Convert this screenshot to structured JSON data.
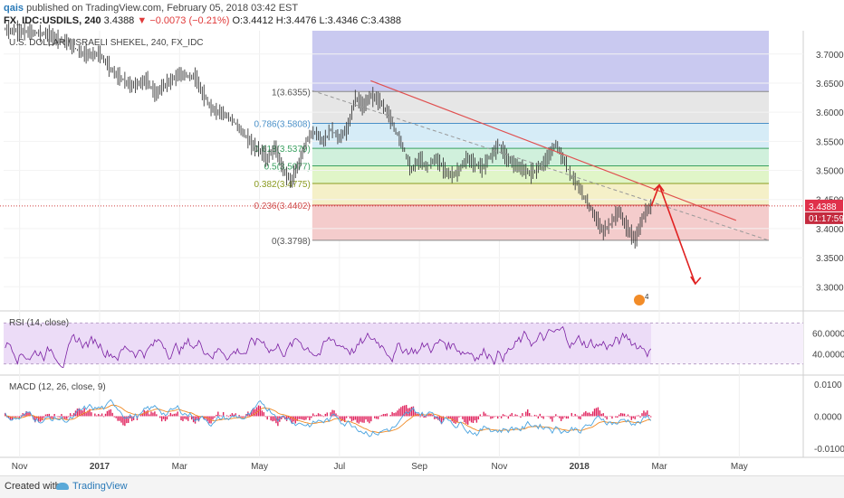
{
  "header": {
    "user": "qais",
    "published": "published on TradingView.com, February 05, 2018 03:42 EST",
    "symbol": "FX_IDC:USDILS, 240",
    "last": "3.4388",
    "change": "▼ −0.0073 (−0.21%)",
    "ohlc": "O:3.4412 H:3.4476 L:3.4346 C:3.4388"
  },
  "footer": {
    "created": "Created with",
    "brand": "TradingView"
  },
  "colors": {
    "up": "#3a3a3a",
    "fib_top": "#c9c9f0",
    "fib_1": "#e6e6e6",
    "fib_0786": "#d6ecf7",
    "fib_0618": "#d0f0dc",
    "fib_05": "#e0f5c8",
    "fib_0382": "#f5f0c8",
    "fib_0236": "#f4cccc",
    "trend": "#e05050",
    "rsi": "#7a1fa2",
    "macd": "#4aa3df",
    "signal": "#f08a24",
    "hist": "#e0245e"
  },
  "chart_data": [
    {
      "type": "line",
      "title": "U.S. DOLLAR / ISRAELI SHEKEL, 240, FX_IDC",
      "x_tick_labels": [
        "Nov",
        "2017",
        "Mar",
        "May",
        "Jul",
        "Sep",
        "Nov",
        "2018",
        "Mar",
        "May"
      ],
      "y_ticks": [
        "3.7000",
        "3.6500",
        "3.6000",
        "3.5500",
        "3.5000",
        "3.4500",
        "3.4000",
        "3.3500",
        "3.3000"
      ],
      "ylim": [
        3.26,
        3.74
      ],
      "last_price_label": "3.4388",
      "countdown_label": "01:17:59",
      "fib_levels": [
        {
          "label": "1(3.6355)",
          "value": 3.6355
        },
        {
          "label": "0.786(3.5808)",
          "value": 3.5808
        },
        {
          "label": "0.618(3.5379)",
          "value": 3.5379
        },
        {
          "label": "0.5(3.5077)",
          "value": 3.5077
        },
        {
          "label": "0.382(3.4775)",
          "value": 3.4775
        },
        {
          "label": "0.236(3.4402)",
          "value": 3.4402
        },
        {
          "label": "0(3.3798)",
          "value": 3.3798
        }
      ],
      "series": [
        {
          "values": [
            [
              0,
              3.742
            ],
            [
              5,
              3.735
            ],
            [
              8,
              3.72
            ],
            [
              10,
              3.7
            ],
            [
              12,
              3.7
            ],
            [
              14,
              3.665
            ],
            [
              16,
              3.645
            ],
            [
              18,
              3.655
            ],
            [
              19,
              3.63
            ],
            [
              20,
              3.645
            ],
            [
              22,
              3.665
            ],
            [
              24,
              3.66
            ],
            [
              25,
              3.63
            ],
            [
              26,
              3.605
            ],
            [
              28,
              3.595
            ],
            [
              30,
              3.565
            ],
            [
              31,
              3.545
            ],
            [
              32,
              3.535
            ],
            [
              33,
              3.52
            ],
            [
              34,
              3.54
            ],
            [
              35,
              3.5
            ],
            [
              36,
              3.48
            ],
            [
              37,
              3.515
            ],
            [
              38,
              3.555
            ],
            [
              39,
              3.565
            ],
            [
              40,
              3.55
            ],
            [
              41,
              3.57
            ],
            [
              42,
              3.555
            ],
            [
              43,
              3.57
            ],
            [
              44,
              3.625
            ],
            [
              45,
              3.61
            ],
            [
              46,
              3.63
            ],
            [
              47,
              3.62
            ],
            [
              48,
              3.6
            ],
            [
              49,
              3.57
            ],
            [
              50,
              3.54
            ],
            [
              51,
              3.5
            ],
            [
              52,
              3.52
            ],
            [
              53,
              3.505
            ],
            [
              54,
              3.52
            ],
            [
              55,
              3.505
            ],
            [
              56,
              3.49
            ],
            [
              57,
              3.5
            ],
            [
              58,
              3.52
            ],
            [
              59,
              3.51
            ],
            [
              60,
              3.505
            ],
            [
              61,
              3.525
            ],
            [
              62,
              3.545
            ],
            [
              63,
              3.52
            ],
            [
              64,
              3.51
            ],
            [
              65,
              3.5
            ],
            [
              66,
              3.495
            ],
            [
              67,
              3.505
            ],
            [
              68,
              3.52
            ],
            [
              69,
              3.545
            ],
            [
              70,
              3.52
            ],
            [
              71,
              3.49
            ],
            [
              72,
              3.47
            ],
            [
              73,
              3.445
            ],
            [
              74,
              3.42
            ],
            [
              75,
              3.395
            ],
            [
              76,
              3.41
            ],
            [
              77,
              3.43
            ],
            [
              78,
              3.4
            ],
            [
              79,
              3.38
            ],
            [
              80,
              3.42
            ],
            [
              81,
              3.4388
            ]
          ]
        }
      ],
      "annotations": {
        "projection_up": [
          [
            81,
            3.4388
          ],
          [
            82,
            3.475
          ]
        ],
        "projection_down": [
          [
            82,
            3.475
          ],
          [
            86.5,
            3.305
          ]
        ]
      }
    },
    {
      "type": "line",
      "title": "RSI (14, close)",
      "y_ticks": [
        "60.0000",
        "40.0000"
      ],
      "ylim": [
        20,
        80
      ],
      "bands": [
        70,
        30
      ]
    },
    {
      "type": "line",
      "title": "MACD (12, 26, close, 9)",
      "y_ticks": [
        "0.0100",
        "0.0000",
        "-0.0100"
      ],
      "ylim": [
        -0.0125,
        0.0125
      ]
    }
  ]
}
